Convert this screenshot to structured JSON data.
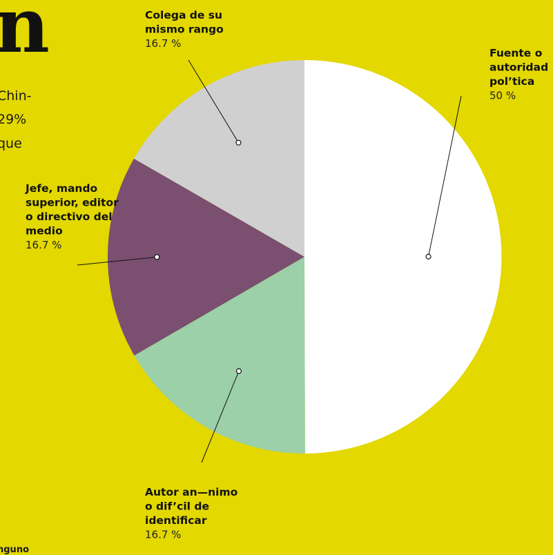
{
  "side_text": {
    "big_letter": "n",
    "line1": "Chin-",
    "line2": "29%",
    "line3": "que",
    "bottom": "nguno"
  },
  "chart_data": {
    "type": "pie",
    "title": "",
    "start_angle_deg": 0,
    "direction": "clockwise",
    "slices": [
      {
        "label_lines": [
          "Fuente o",
          "autoridad",
          "pol’tica"
        ],
        "pct_label": "50 %",
        "value": 50,
        "color": "#ffffff"
      },
      {
        "label_lines": [
          "Autor an—nimo",
          "o dif’cil de",
          "identificar"
        ],
        "pct_label": "16.7 %",
        "value": 16.7,
        "color": "#9bd0a8"
      },
      {
        "label_lines": [
          "Jefe, mando",
          "superior, editor",
          "o directivo del",
          "medio"
        ],
        "pct_label": "16.7 %",
        "value": 16.7,
        "color": "#7a4f70"
      },
      {
        "label_lines": [
          "Colega de su",
          "mismo rango"
        ],
        "pct_label": "16.7 %",
        "value": 16.7,
        "color": "#d0d0d0"
      }
    ]
  }
}
